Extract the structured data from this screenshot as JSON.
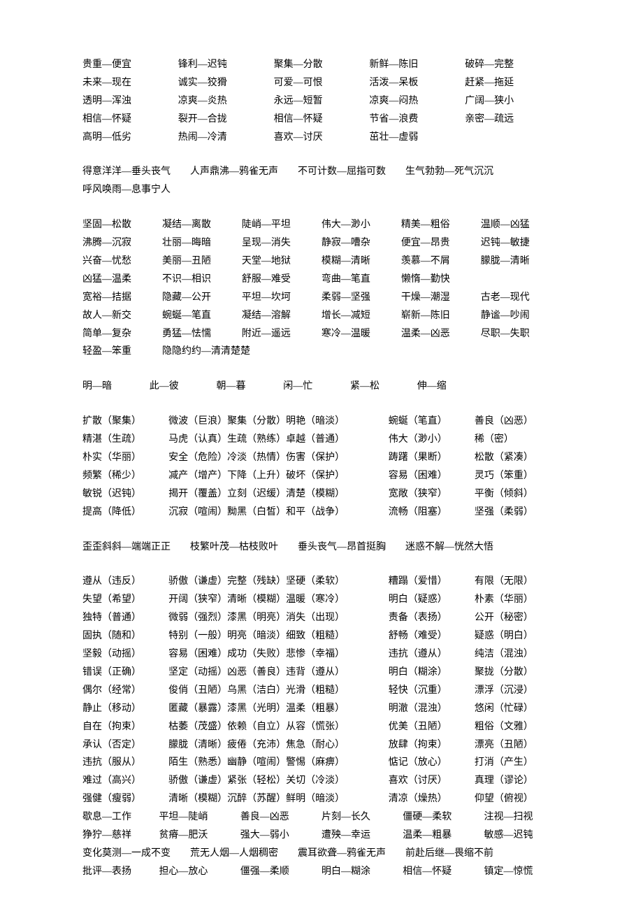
{
  "block1": {
    "rows": [
      [
        "贵重—便宜",
        "锋利—迟钝",
        "聚集—分散",
        "新鲜—陈旧",
        "破碎—完整"
      ],
      [
        "未来—现在",
        "诚实—狡猾",
        "可爱—可恨",
        "活泼—呆板",
        "赶紧—拖延"
      ],
      [
        "透明—浑浊",
        "凉爽—炎热",
        "永远—短暂",
        "凉爽—闷热",
        "广阔—狭小"
      ],
      [
        "相信—怀疑",
        "裂开—合拢",
        "相信—怀疑",
        "节省—浪费",
        "亲密—疏远"
      ],
      [
        "高明—低劣",
        "热闹—冷清",
        "喜欢—讨厌",
        "茁壮—虚弱",
        ""
      ]
    ]
  },
  "block2": {
    "line1": [
      "得意洋洋—垂头丧气",
      "人声鼎沸—鸦雀无声",
      "不可计数—屈指可数",
      "生气勃勃—死气沉沉"
    ],
    "line2": "呼风唤雨—息事宁人"
  },
  "block3": {
    "rows": [
      [
        "坚固—松散",
        "凝结—离散",
        "陡峭—平坦",
        "伟大—渺小",
        "精美—粗俗",
        "温顺—凶猛"
      ],
      [
        "沸腾—沉寂",
        "壮丽—晦暗",
        "呈现—消失",
        "静寂—嘈杂",
        "便宜—昂贵",
        "迟钝—敏捷"
      ],
      [
        "兴奋—忧愁",
        "美丽—丑陋",
        "天堂—地狱",
        "模糊—清晰",
        "羡慕—不屑",
        "朦胧—清晰"
      ],
      [
        "凶猛—温柔",
        "不识—相识",
        "舒服—难受",
        "弯曲—笔直",
        "懒惰—勤快",
        ""
      ],
      [
        "宽裕—拮据",
        "隐藏—公开",
        "平坦—坎坷",
        "柔弱—坚强",
        "干燥—潮湿",
        "古老—现代"
      ],
      [
        "故人—新交",
        "蜿蜒—笔直",
        "凝结—溶解",
        "增长—减短",
        "崭新—陈旧",
        "静谧—吵闹"
      ],
      [
        "简单—复杂",
        "勇猛—怯懦",
        "附近—遥远",
        "寒冷—温暖",
        "温柔—凶恶",
        "尽职—失职"
      ]
    ],
    "last": [
      "轻盈—笨重",
      "隐隐约约—清清楚楚"
    ]
  },
  "block4": {
    "pairs": [
      "明—暗",
      "此—彼",
      "朝—暮",
      "闲—忙",
      "紧—松",
      "伸—缩"
    ]
  },
  "block5": {
    "rows": [
      [
        "扩散（聚集）",
        "微波（巨浪）聚集（分散）明艳（暗淡）",
        "蜿蜒（笔直）",
        "善良（凶恶）"
      ],
      [
        "精湛（生疏）",
        "马虎（认真）生疏（熟练）卓越（普通）",
        "伟大（渺小）",
        "稀（密）"
      ],
      [
        "朴实（华丽）",
        "安全（危险）冷淡（热情）伤害（保护）",
        "踌躇（果断）",
        "松散（紧凑）"
      ],
      [
        "频繁（稀少）",
        "减产（增产）下降（上升）破坏（保护）",
        "容易（困难）",
        "灵巧（笨重）"
      ],
      [
        "敏锐（迟钝）",
        "揭开（覆盖）立刻（迟缓）清楚（模糊）",
        "宽敞（狭窄）",
        "平衡（倾斜）"
      ],
      [
        "提高（降低）",
        "沉寂（喧闹）黝黑（白皙）和平（战争）",
        "流畅（阻塞）",
        "坚强（柔弱）"
      ]
    ]
  },
  "block6": {
    "items": [
      "歪歪斜斜—端端正正",
      "枝繁叶茂—枯枝败叶",
      "垂头丧气—昂首挺胸",
      "迷惑不解—恍然大悟"
    ]
  },
  "block7": {
    "rows": [
      [
        "遵从（违反）",
        "骄傲（谦虚）完整（残缺）坚硬（柔软）",
        "糟蹋（爱惜）",
        "有限（无限）"
      ],
      [
        "失望（希望）",
        "开阔（狭窄）清晰（模糊）温暖（寒冷）",
        "明白（疑惑）",
        "朴素（华丽）"
      ],
      [
        "独特（普通）",
        "微弱（强烈）漆黑（明亮）消失（出现）",
        "责备（表扬）",
        "公开（秘密）"
      ],
      [
        "固执（随和）",
        "特别（一般）明亮（暗淡）细致（粗糙）",
        "舒畅（难受）",
        "疑惑（明白）"
      ],
      [
        "坚毅（动摇）",
        "容易（困难）成功（失败）悲惨（幸福）",
        "违抗（遵从）",
        "纯洁（混浊）"
      ],
      [
        "错误（正确）",
        "坚定（动摇）凶恶（善良）违背（遵从）",
        "明白（糊涂）",
        "聚拢（分散）"
      ],
      [
        "偶尔（经常）",
        "俊俏（丑陋）乌黑（洁白）光滑（粗糙）",
        "轻快（沉重）",
        "漂浮（沉浸）"
      ],
      [
        "静止（移动）",
        "匿藏（暴露）漆黑（光明）温柔（粗暴）",
        "明澈（混浊）",
        "悠闲（忙碌）"
      ],
      [
        "自在（拘束）",
        "枯萎（茂盛）依赖（自立）从容（慌张）",
        "优美（丑陋）",
        "粗俗（文雅）"
      ],
      [
        "承认（否定）",
        "朦胧（清晰）疲倦（充沛）焦急（耐心）",
        "放肆（拘束）",
        "漂亮（丑陋）"
      ],
      [
        "违抗（服从）",
        "陌生（熟悉）幽静（喧闹）警惕（麻痹）",
        "惦记（放心）",
        "打消（产生）"
      ],
      [
        "难过（高兴）",
        "骄傲（谦虚）紧张（轻松）关切（冷淡）",
        "喜欢（讨厌）",
        "真理（谬论）"
      ],
      [
        "强健（瘦弱）",
        "清晰（模糊）沉醉（苏醒）鲜明（暗淡）",
        "清凉（燥热）",
        "仰望（俯视）"
      ]
    ]
  },
  "block8": {
    "line1": [
      "歇息—工作",
      "平坦—陡峭",
      "善良—凶恶",
      "片刻—长久",
      "僵硬—柔软",
      "注视—扫视"
    ],
    "line2": [
      "狰狞—慈祥",
      "贫瘠—肥沃",
      "强大—弱小",
      "遭殃—幸运",
      "温柔—粗暴",
      "敏感—迟钝"
    ],
    "line3": [
      "变化莫测—一成不变",
      "荒无人烟—人烟稠密",
      "震耳欲聋—鸦雀无声",
      "前赴后继—畏缩不前"
    ],
    "line4": [
      "批评—表扬",
      "担心—放心",
      "僵强—柔顺",
      "明白—糊涂",
      "相信—怀疑",
      "镇定—惊慌"
    ]
  }
}
